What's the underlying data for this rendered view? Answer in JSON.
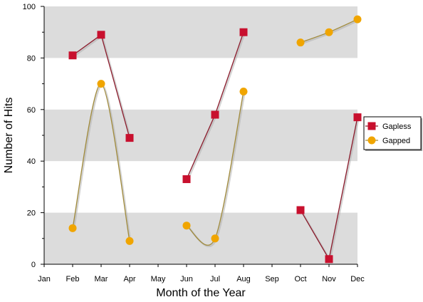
{
  "chart_data": {
    "type": "line",
    "title": "",
    "xlabel": "Month of the Year",
    "ylabel": "Number of Hits",
    "categories": [
      "Jan",
      "Feb",
      "Mar",
      "Apr",
      "May",
      "Jun",
      "Jul",
      "Aug",
      "Sep",
      "Oct",
      "Nov",
      "Dec"
    ],
    "ylim": [
      0,
      100
    ],
    "yticks": [
      0,
      20,
      40,
      60,
      80,
      100
    ],
    "grid_bands": "alternating horizontal bands",
    "legend_position": "right",
    "series": [
      {
        "name": "Gapless",
        "marker": "square",
        "color": "#c8102e",
        "line_color": "#8b1a2b",
        "smooth": false,
        "values": [
          null,
          81,
          89,
          49,
          null,
          33,
          58,
          90,
          null,
          21,
          2,
          57
        ]
      },
      {
        "name": "Gapped",
        "marker": "circle",
        "color": "#f0a500",
        "line_color": "#a08a3a",
        "smooth": true,
        "values": [
          null,
          14,
          70,
          9,
          null,
          15,
          10,
          67,
          null,
          86,
          90,
          95
        ]
      }
    ],
    "colors": {
      "band": "#dcdcdc",
      "axis": "#000000"
    }
  }
}
